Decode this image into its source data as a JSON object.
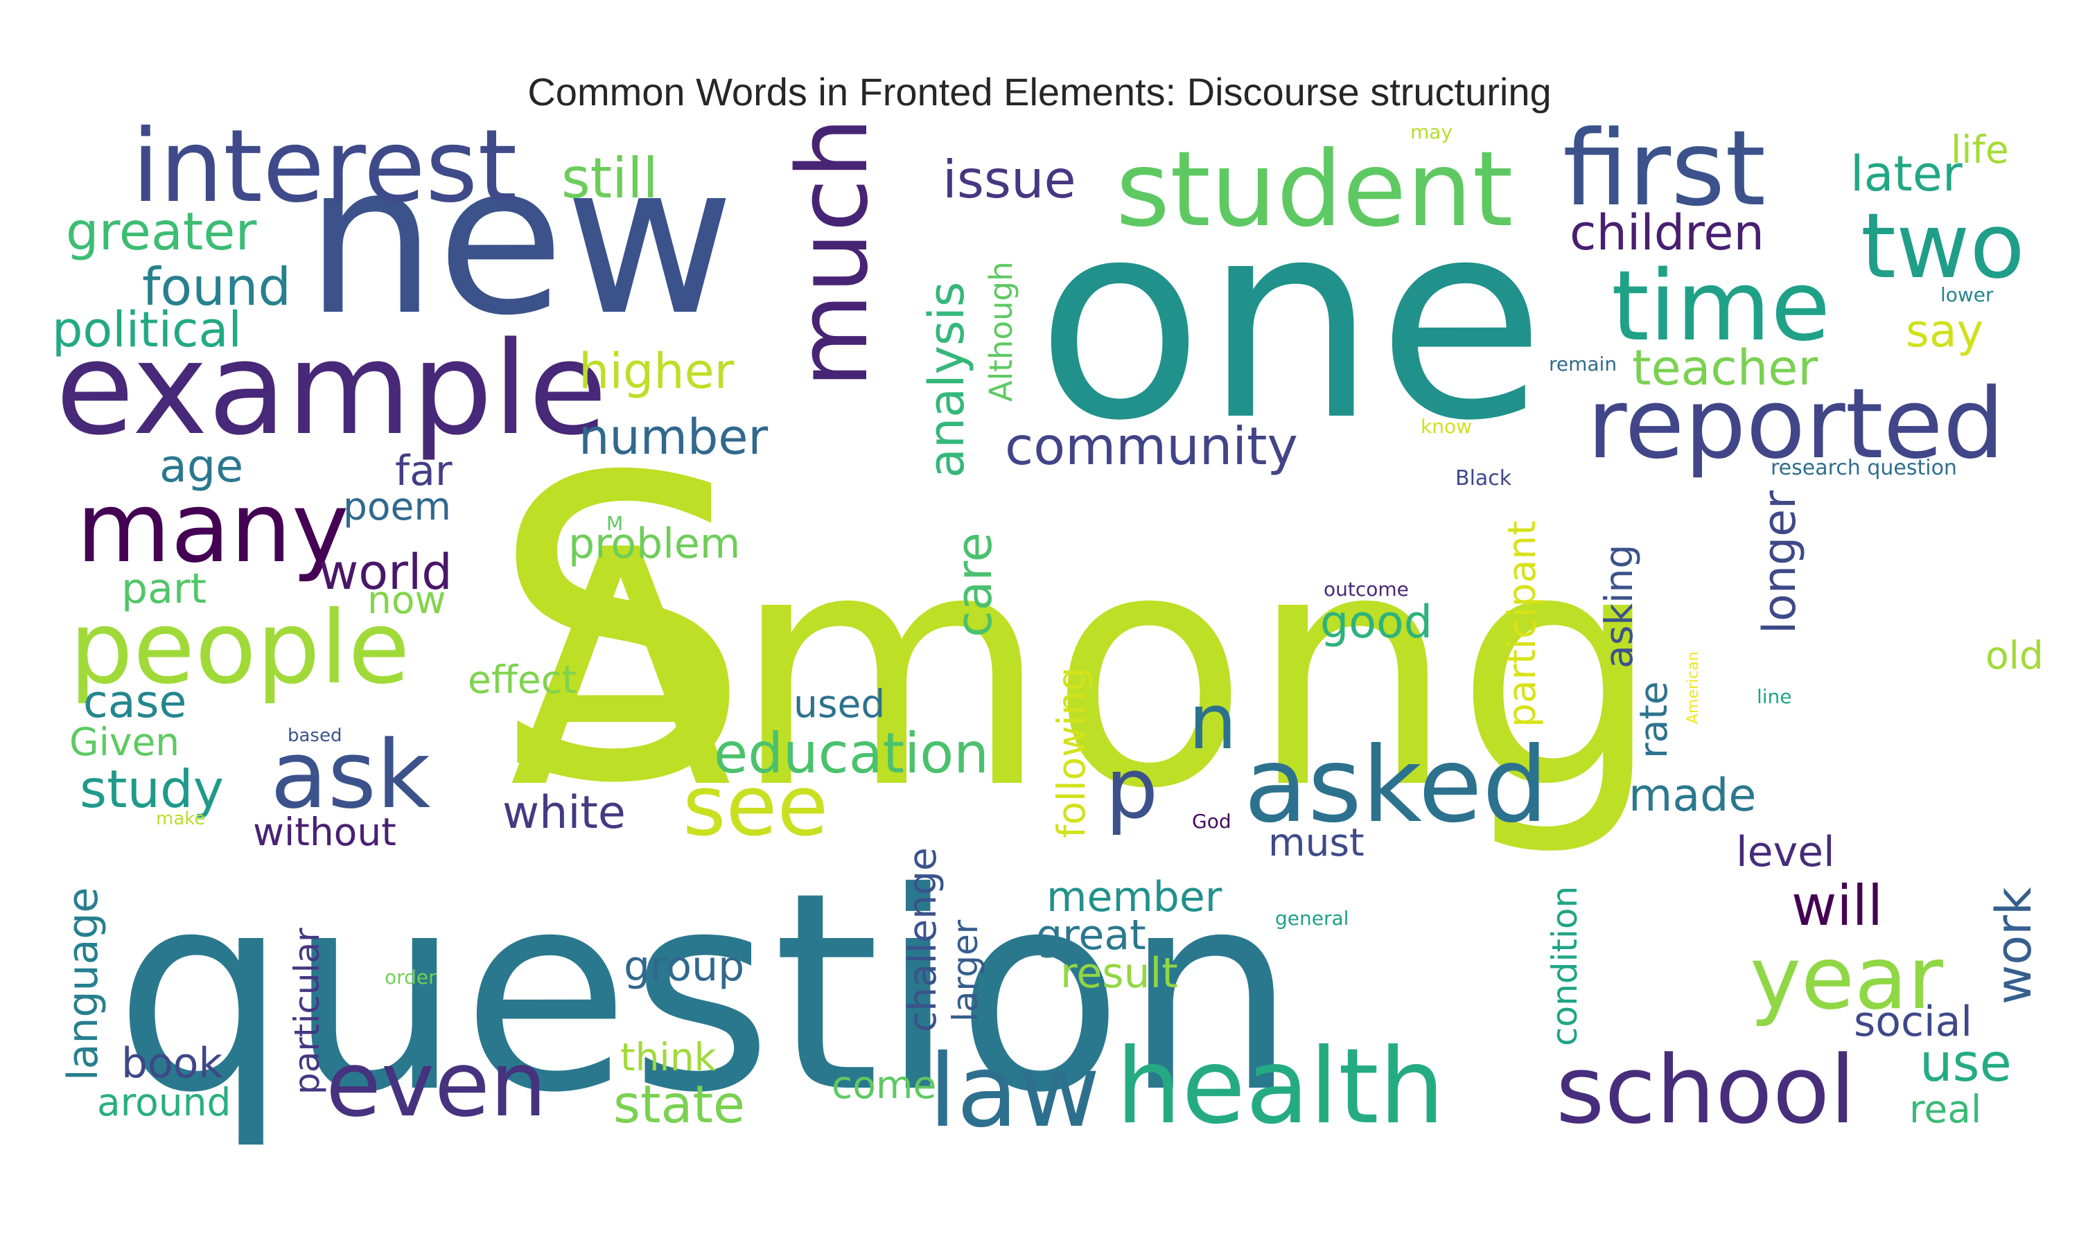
{
  "chart_data": {
    "type": "wordcloud",
    "title": "Common Words in Fronted Elements: Discourse structuring",
    "words": [
      {
        "text": "Among",
        "color": "#bddf26"
      },
      {
        "text": "question",
        "color": "#2a788e"
      },
      {
        "text": "one",
        "color": "#21918c"
      },
      {
        "text": "new",
        "color": "#3b528b"
      },
      {
        "text": "S",
        "color": "#bddf26"
      },
      {
        "text": "example",
        "color": "#482878"
      },
      {
        "text": "student",
        "color": "#5ec962"
      },
      {
        "text": "first",
        "color": "#3b528b"
      },
      {
        "text": "interest",
        "color": "#3e4a89"
      },
      {
        "text": "people",
        "color": "#a0da39"
      },
      {
        "text": "asked",
        "color": "#2c728e"
      },
      {
        "text": "health",
        "color": "#25ab82"
      },
      {
        "text": "reported",
        "color": "#404688"
      },
      {
        "text": "many",
        "color": "#440154"
      },
      {
        "text": "law",
        "color": "#2d708e"
      },
      {
        "text": "time",
        "color": "#1fa187"
      },
      {
        "text": "even",
        "color": "#46327e"
      },
      {
        "text": "school",
        "color": "#472d7b"
      },
      {
        "text": "year",
        "color": "#8fd744"
      },
      {
        "text": "ask",
        "color": "#3b528b"
      },
      {
        "text": "see",
        "color": "#c8e020"
      },
      {
        "text": "much",
        "color": "#482475"
      },
      {
        "text": "two",
        "color": "#1f9e89"
      },
      {
        "text": "p",
        "color": "#3b528b"
      },
      {
        "text": "n",
        "color": "#2c728e"
      },
      {
        "text": "education",
        "color": "#4ac16d"
      },
      {
        "text": "community",
        "color": "#414487"
      },
      {
        "text": "analysis",
        "color": "#35b779"
      },
      {
        "text": "teacher",
        "color": "#7ad151"
      },
      {
        "text": "children",
        "color": "#481f70"
      },
      {
        "text": "issue",
        "color": "#453781"
      },
      {
        "text": "still",
        "color": "#6ccd5a"
      },
      {
        "text": "greater",
        "color": "#3dbc74"
      },
      {
        "text": "found",
        "color": "#27808e"
      },
      {
        "text": "political",
        "color": "#23a983"
      },
      {
        "text": "higher",
        "color": "#bddf26"
      },
      {
        "text": "number",
        "color": "#31688e"
      },
      {
        "text": "age",
        "color": "#2a788e"
      },
      {
        "text": "far",
        "color": "#433e85"
      },
      {
        "text": "poem",
        "color": "#31688e"
      },
      {
        "text": "world",
        "color": "#481769"
      },
      {
        "text": "problem",
        "color": "#6ece58"
      },
      {
        "text": "part",
        "color": "#52c569"
      },
      {
        "text": "now",
        "color": "#84d44b"
      },
      {
        "text": "case",
        "color": "#24868e"
      },
      {
        "text": "effect",
        "color": "#7fd34e"
      },
      {
        "text": "Given",
        "color": "#5ec962"
      },
      {
        "text": "study",
        "color": "#1f9a8a"
      },
      {
        "text": "used",
        "color": "#2c728e"
      },
      {
        "text": "care",
        "color": "#4ac16d"
      },
      {
        "text": "following",
        "color": "#d2e21b"
      },
      {
        "text": "participant",
        "color": "#d8e219"
      },
      {
        "text": "good",
        "color": "#2db27d"
      },
      {
        "text": "longer",
        "color": "#3e4989"
      },
      {
        "text": "life",
        "color": "#a5db36"
      },
      {
        "text": "later",
        "color": "#22a785"
      },
      {
        "text": "say",
        "color": "#d0e11c"
      },
      {
        "text": "Although",
        "color": "#5ec962"
      },
      {
        "text": "lower",
        "color": "#25858e"
      },
      {
        "text": "remain",
        "color": "#306a8e"
      },
      {
        "text": "may",
        "color": "#b5de2b"
      },
      {
        "text": "know",
        "color": "#d0e11c"
      },
      {
        "text": "Black",
        "color": "#3e4989"
      },
      {
        "text": "research question",
        "color": "#2e6f8e"
      },
      {
        "text": "M",
        "color": "#5ec962"
      },
      {
        "text": "outcome",
        "color": "#482979"
      },
      {
        "text": "asking",
        "color": "#3b528b"
      },
      {
        "text": "rate",
        "color": "#2c738e"
      },
      {
        "text": "American",
        "color": "#f1e51d"
      },
      {
        "text": "line",
        "color": "#20a486"
      },
      {
        "text": "old",
        "color": "#a2da37"
      },
      {
        "text": "made",
        "color": "#2a788e"
      },
      {
        "text": "based",
        "color": "#3a548c"
      },
      {
        "text": "make",
        "color": "#b8de29"
      },
      {
        "text": "without",
        "color": "#482173"
      },
      {
        "text": "white",
        "color": "#443a83"
      },
      {
        "text": "must",
        "color": "#3e4a89"
      },
      {
        "text": "God",
        "color": "#460b5e"
      },
      {
        "text": "language",
        "color": "#277f8e"
      },
      {
        "text": "particular",
        "color": "#453882"
      },
      {
        "text": "challenge",
        "color": "#3b528b"
      },
      {
        "text": "larger",
        "color": "#365c8d"
      },
      {
        "text": "member",
        "color": "#21918c"
      },
      {
        "text": "great",
        "color": "#2a788e"
      },
      {
        "text": "result",
        "color": "#93d741"
      },
      {
        "text": "general",
        "color": "#1fa088"
      },
      {
        "text": "order",
        "color": "#74d055"
      },
      {
        "text": "condition",
        "color": "#20a486"
      },
      {
        "text": "will",
        "color": "#440154"
      },
      {
        "text": "level",
        "color": "#472c7a"
      },
      {
        "text": "work",
        "color": "#355f8d"
      },
      {
        "text": "social",
        "color": "#3e4989"
      },
      {
        "text": "group",
        "color": "#31688e"
      },
      {
        "text": "book",
        "color": "#3f4788"
      },
      {
        "text": "think",
        "color": "#a0da39"
      },
      {
        "text": "around",
        "color": "#29af7f"
      },
      {
        "text": "state",
        "color": "#7ad151"
      },
      {
        "text": "come",
        "color": "#5ec962"
      },
      {
        "text": "use",
        "color": "#25ab82"
      },
      {
        "text": "real",
        "color": "#3aba76"
      }
    ]
  }
}
